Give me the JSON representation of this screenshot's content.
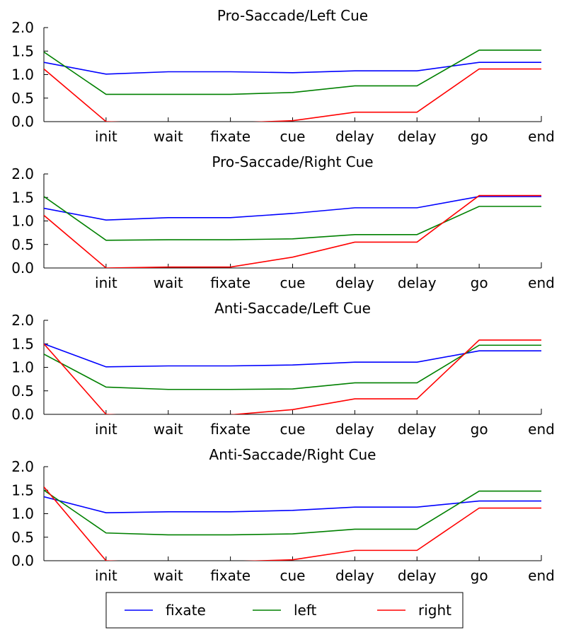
{
  "chart_data": [
    {
      "type": "line",
      "title": "Pro-Saccade/Left Cue",
      "x_labels": [
        "",
        "init",
        "wait",
        "fixate",
        "cue",
        "delay",
        "delay",
        "go",
        "end"
      ],
      "ylim": [
        0,
        2.0
      ],
      "yticks": [
        "0.0",
        "0.5",
        "1.0",
        "1.5",
        "2.0"
      ],
      "series": [
        {
          "name": "fixate",
          "color": "#0000ff",
          "values": [
            1.26,
            1.01,
            1.06,
            1.06,
            1.04,
            1.08,
            1.08,
            1.26,
            1.26
          ]
        },
        {
          "name": "left",
          "color": "#008000",
          "values": [
            1.48,
            0.58,
            0.58,
            0.58,
            0.62,
            0.76,
            0.76,
            1.52,
            1.52
          ]
        },
        {
          "name": "right",
          "color": "#ff0000",
          "values": [
            1.12,
            0.0,
            -0.05,
            -0.03,
            0.02,
            0.2,
            0.2,
            1.12,
            1.12
          ]
        }
      ]
    },
    {
      "type": "line",
      "title": "Pro-Saccade/Right Cue",
      "x_labels": [
        "",
        "init",
        "wait",
        "fixate",
        "cue",
        "delay",
        "delay",
        "go",
        "end"
      ],
      "ylim": [
        0,
        2.0
      ],
      "yticks": [
        "0.0",
        "0.5",
        "1.0",
        "1.5",
        "2.0"
      ],
      "series": [
        {
          "name": "fixate",
          "color": "#0000ff",
          "values": [
            1.27,
            1.02,
            1.07,
            1.07,
            1.16,
            1.28,
            1.28,
            1.52,
            1.52
          ]
        },
        {
          "name": "left",
          "color": "#008000",
          "values": [
            1.52,
            0.59,
            0.6,
            0.6,
            0.62,
            0.71,
            0.71,
            1.31,
            1.31
          ]
        },
        {
          "name": "right",
          "color": "#ff0000",
          "values": [
            1.12,
            0.0,
            0.02,
            0.02,
            0.23,
            0.55,
            0.55,
            1.54,
            1.54
          ]
        }
      ]
    },
    {
      "type": "line",
      "title": "Anti-Saccade/Left Cue",
      "x_labels": [
        "",
        "init",
        "wait",
        "fixate",
        "cue",
        "delay",
        "delay",
        "go",
        "end"
      ],
      "ylim": [
        0,
        2.0
      ],
      "yticks": [
        "0.0",
        "0.5",
        "1.0",
        "1.5",
        "2.0"
      ],
      "series": [
        {
          "name": "fixate",
          "color": "#0000ff",
          "values": [
            1.5,
            1.01,
            1.03,
            1.03,
            1.05,
            1.11,
            1.11,
            1.35,
            1.35
          ]
        },
        {
          "name": "left",
          "color": "#008000",
          "values": [
            1.28,
            0.58,
            0.53,
            0.53,
            0.54,
            0.67,
            0.67,
            1.47,
            1.47
          ]
        },
        {
          "name": "right",
          "color": "#ff0000",
          "values": [
            1.5,
            0.0,
            -0.07,
            -0.01,
            0.1,
            0.33,
            0.33,
            1.58,
            1.58
          ]
        }
      ]
    },
    {
      "type": "line",
      "title": "Anti-Saccade/Right Cue",
      "x_labels": [
        "",
        "init",
        "wait",
        "fixate",
        "cue",
        "delay",
        "delay",
        "go",
        "end"
      ],
      "ylim": [
        0,
        2.0
      ],
      "yticks": [
        "0.0",
        "0.5",
        "1.0",
        "1.5",
        "2.0"
      ],
      "series": [
        {
          "name": "fixate",
          "color": "#0000ff",
          "values": [
            1.36,
            1.02,
            1.04,
            1.04,
            1.07,
            1.14,
            1.14,
            1.27,
            1.27
          ]
        },
        {
          "name": "left",
          "color": "#008000",
          "values": [
            1.5,
            0.59,
            0.55,
            0.55,
            0.57,
            0.67,
            0.67,
            1.48,
            1.48
          ]
        },
        {
          "name": "right",
          "color": "#ff0000",
          "values": [
            1.57,
            0.0,
            -0.06,
            -0.02,
            0.02,
            0.22,
            0.22,
            1.12,
            1.12
          ]
        }
      ]
    }
  ],
  "legend": {
    "placement": "bottom-center",
    "items": [
      {
        "label": "fixate",
        "color": "#0000ff"
      },
      {
        "label": "left",
        "color": "#008000"
      },
      {
        "label": "right",
        "color": "#ff0000"
      }
    ]
  }
}
